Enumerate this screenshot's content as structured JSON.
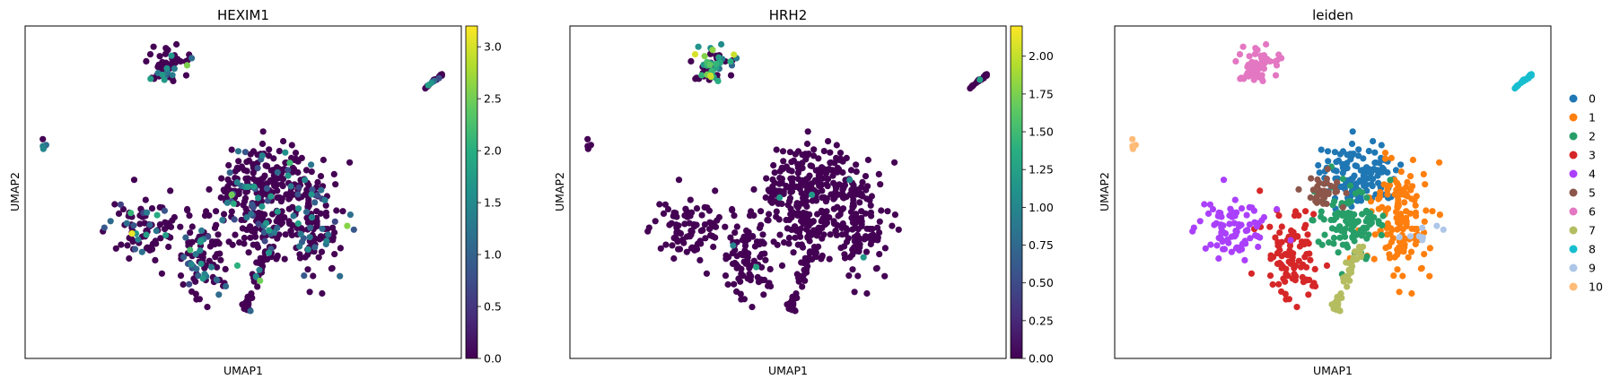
{
  "chart_data": [
    {
      "type": "scatter",
      "title": "HEXIM1",
      "xlabel": "UMAP1",
      "ylabel": "UMAP2",
      "colorbar": {
        "cmap": "viridis",
        "range": [
          0,
          3.2
        ],
        "ticks": [
          "0.0",
          "0.5",
          "1.0",
          "1.5",
          "2.0",
          "2.5",
          "3.0"
        ],
        "tick_values": [
          0,
          0.5,
          1.0,
          1.5,
          2.0,
          2.5,
          3.0
        ]
      },
      "grid": false,
      "axes_ticks_shown": false
    },
    {
      "type": "scatter",
      "title": "HRH2",
      "xlabel": "UMAP1",
      "ylabel": "UMAP2",
      "colorbar": {
        "cmap": "viridis",
        "range": [
          0,
          2.2
        ],
        "ticks": [
          "0.00",
          "0.25",
          "0.50",
          "0.75",
          "1.00",
          "1.25",
          "1.50",
          "1.75",
          "2.00"
        ],
        "tick_values": [
          0,
          0.25,
          0.5,
          0.75,
          1.0,
          1.25,
          1.5,
          1.75,
          2.0
        ]
      },
      "grid": false,
      "axes_ticks_shown": false
    },
    {
      "type": "scatter",
      "title": "leiden",
      "xlabel": "UMAP1",
      "ylabel": "UMAP2",
      "legend_position": "right",
      "categories": [
        {
          "name": "0",
          "color": "#1f77b4"
        },
        {
          "name": "1",
          "color": "#ff7f0e"
        },
        {
          "name": "2",
          "color": "#279e68"
        },
        {
          "name": "3",
          "color": "#d62728"
        },
        {
          "name": "4",
          "color": "#aa40fc"
        },
        {
          "name": "5",
          "color": "#8c564b"
        },
        {
          "name": "6",
          "color": "#e377c2"
        },
        {
          "name": "7",
          "color": "#b5bd61"
        },
        {
          "name": "8",
          "color": "#17becf"
        },
        {
          "name": "9",
          "color": "#aec7e8"
        },
        {
          "name": "10",
          "color": "#ffbb78"
        }
      ],
      "grid": false,
      "axes_ticks_shown": false
    }
  ]
}
